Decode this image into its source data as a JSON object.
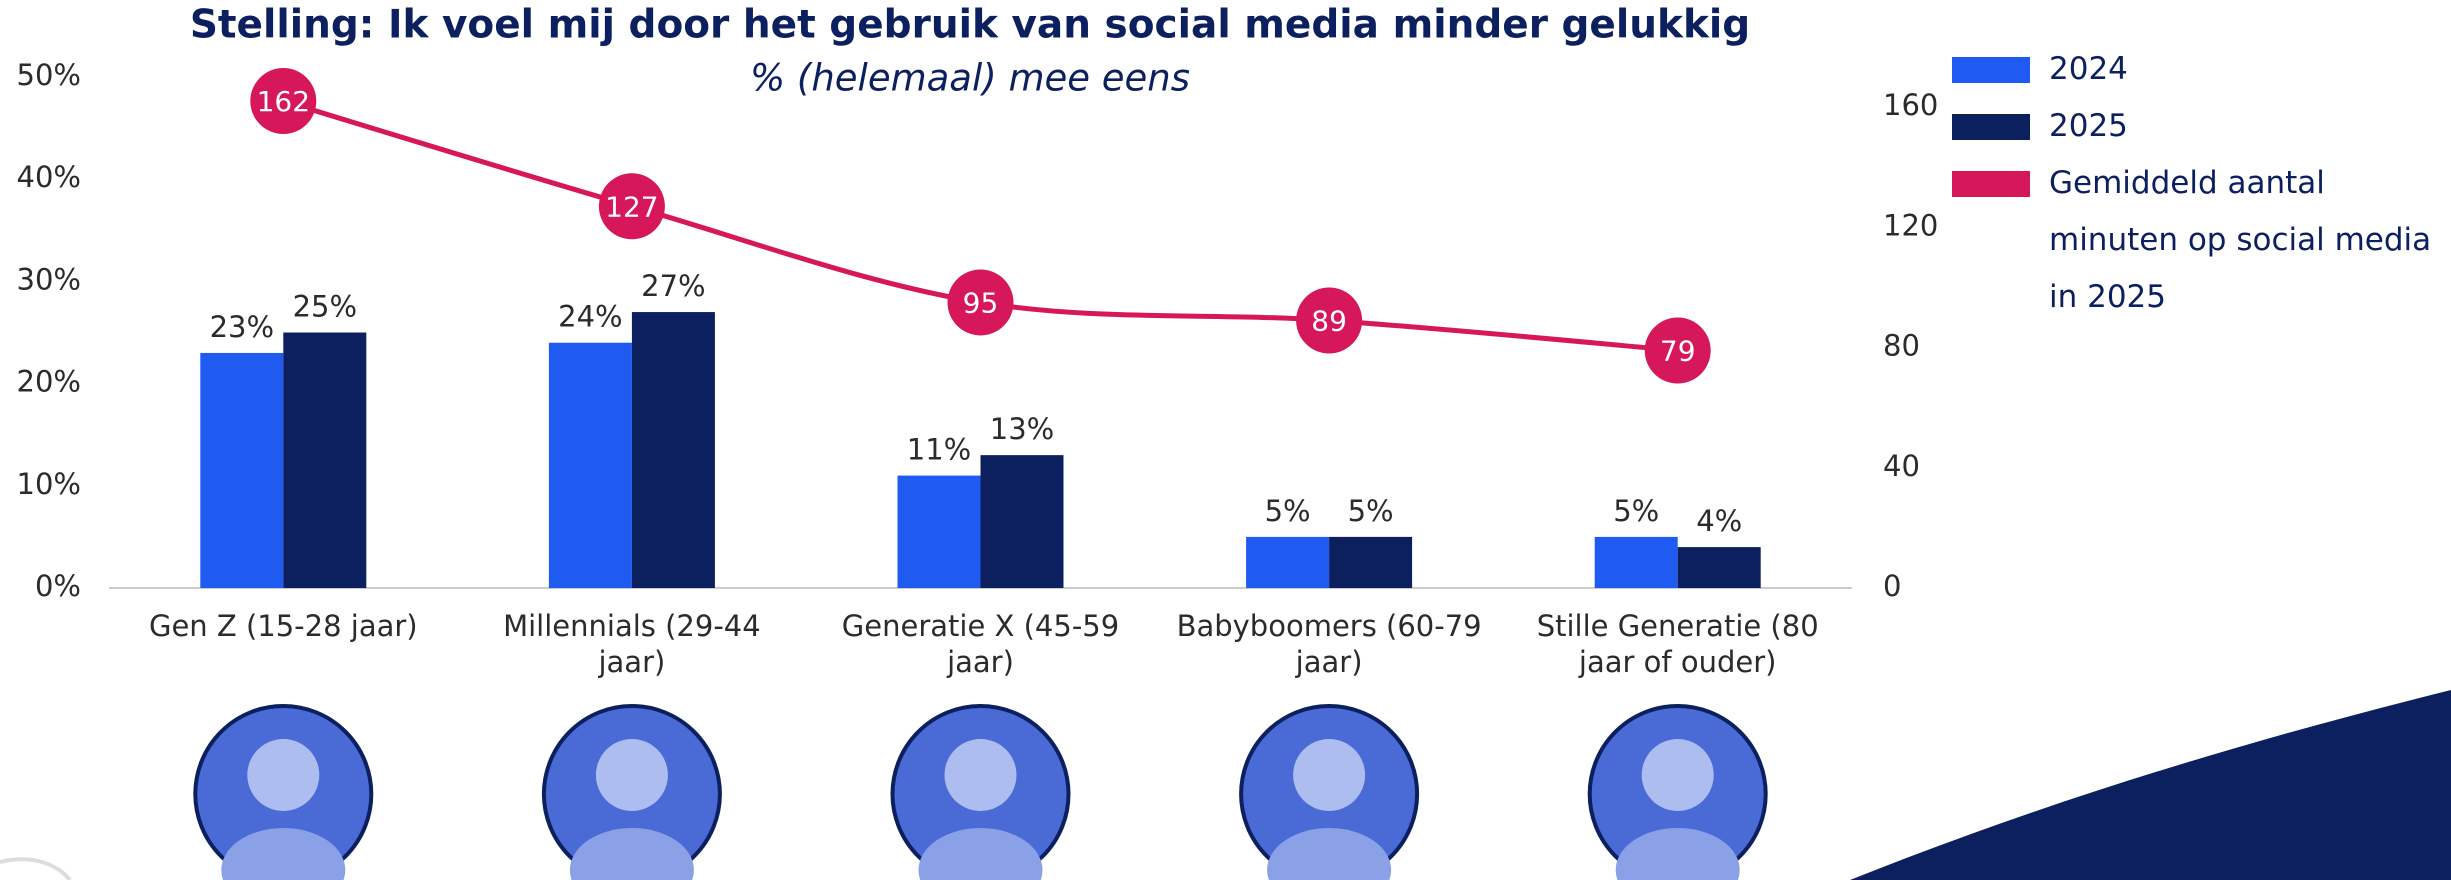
{
  "chart_data": {
    "type": "bar",
    "title": "Stelling: Ik voel mij door het gebruik van social media minder gelukkig",
    "subtitle": "% (helemaal) mee eens",
    "categories": [
      "Gen Z (15-28 jaar)",
      "Millennials (29-44 jaar)",
      "Generatie X (45-59 jaar)",
      "Babyboomers (60-79 jaar)",
      "Stille Generatie (80 jaar of ouder)"
    ],
    "series": [
      {
        "name": "2024",
        "color": "#1f5bf0",
        "values": [
          23,
          24,
          11,
          5,
          5
        ],
        "value_labels": [
          "23%",
          "24%",
          "11%",
          "5%",
          "5%"
        ]
      },
      {
        "name": "2025",
        "color": "#0c1f5e",
        "values": [
          25,
          27,
          13,
          5,
          4
        ],
        "value_labels": [
          "25%",
          "27%",
          "13%",
          "5%",
          "4%"
        ]
      },
      {
        "name": "Gemiddeld aantal minuten op social media in 2025",
        "type": "line",
        "axis": "y2",
        "color": "#d6175a",
        "values": [
          162,
          127,
          95,
          89,
          79
        ]
      }
    ],
    "ylim": [
      0,
      50
    ],
    "yticks": [
      {
        "value": 0,
        "label": "0%"
      },
      {
        "value": 10,
        "label": "10%"
      },
      {
        "value": 20,
        "label": "20%"
      },
      {
        "value": 30,
        "label": "30%"
      },
      {
        "value": 40,
        "label": "40%"
      },
      {
        "value": 50,
        "label": "50%"
      }
    ],
    "y2lim": [
      0,
      170
    ],
    "y2ticks": [
      0,
      40,
      80,
      120,
      160
    ],
    "legend": "right"
  }
}
